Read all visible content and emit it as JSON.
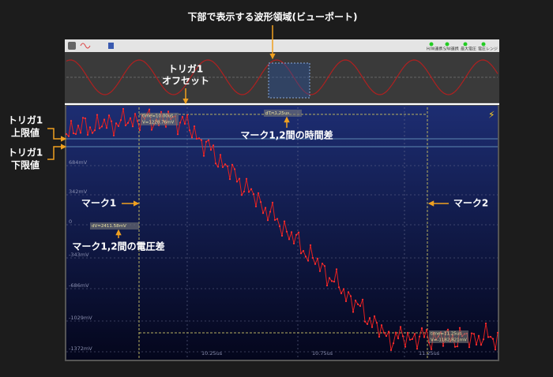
{
  "annotations": {
    "viewport": "下部で表示する波形領域(ビューポート)",
    "trigger_offset": [
      "トリガ1",
      "オフセット"
    ],
    "trigger_upper": [
      "トリガ1",
      "上限値"
    ],
    "trigger_lower": [
      "トリガ1",
      "下限値"
    ],
    "time_diff": "マーク1,2間の時間差",
    "mark1": "マーク1",
    "mark2": "マーク2",
    "voltage_diff": "マーク1,2間の電圧差"
  },
  "toolbar": {
    "status": [
      "H/W連携",
      "S/W連携",
      "最大電圧",
      "電圧レンジ"
    ]
  },
  "plot": {
    "y_labels": [
      "684mV",
      "342mV",
      "0",
      "-343mV",
      "-686mV",
      "-1029mV",
      "-1372mV"
    ],
    "x_labels": [
      "10.25us",
      "10.75us",
      "11.25us"
    ],
    "mark1_label": [
      "time=10.00us",
      "V=1228.76mV"
    ],
    "mark2_label": [
      "time=11.25us",
      "V=-1182.821mV"
    ],
    "dt_label": "dT=1.25us",
    "dv_label": "dV=2411.58mV"
  }
}
